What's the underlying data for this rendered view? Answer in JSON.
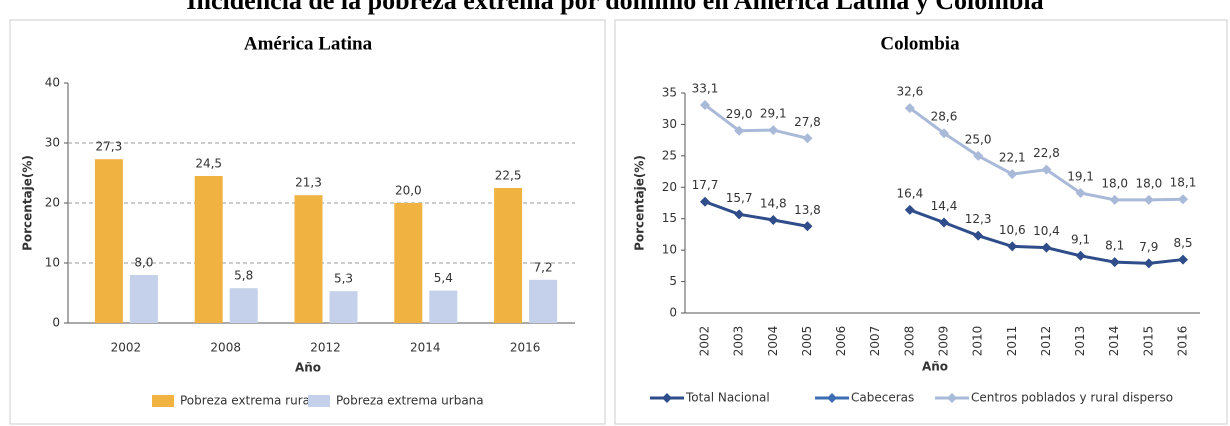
{
  "title": "Incidencia de la pobreza extrema por dominio en América Latina y Colombia",
  "chart_data": [
    {
      "type": "bar",
      "title": "América Latina",
      "x_label": "Año",
      "y_label": "Porcentaje(%)",
      "categories": [
        "2002",
        "2008",
        "2012",
        "2014",
        "2016"
      ],
      "series": [
        {
          "name": "Pobreza extrema rural",
          "color": "#f0b240",
          "values": [
            27.3,
            24.5,
            21.3,
            20.0,
            22.5
          ],
          "value_labels": [
            "27,3",
            "24,5",
            "21,3",
            "20,0",
            "22,5"
          ]
        },
        {
          "name": "Pobreza extrema urbana",
          "color": "#c5d0ea",
          "values": [
            8.0,
            5.8,
            5.3,
            5.4,
            7.2
          ],
          "value_labels": [
            "8,0",
            "5,8",
            "5,3",
            "5,4",
            "7,2"
          ]
        }
      ],
      "ylim": [
        0,
        40
      ],
      "yticks": [
        0,
        10,
        20,
        30,
        40
      ],
      "grid": true
    },
    {
      "type": "line",
      "title": "Colombia",
      "x_label": "Año",
      "y_label": "Porcentaje(%)",
      "categories": [
        "2002",
        "2003",
        "2004",
        "2005",
        "2006",
        "2007",
        "2008",
        "2009",
        "2010",
        "2011",
        "2012",
        "2013",
        "2014",
        "2015",
        "2016"
      ],
      "series": [
        {
          "name": "Total Nacional",
          "color": "#2e4d8a",
          "values": [
            17.7,
            15.7,
            14.8,
            13.8,
            null,
            null,
            16.4,
            14.4,
            12.3,
            10.6,
            10.4,
            9.1,
            8.1,
            7.9,
            8.5
          ],
          "value_labels": [
            "17,7",
            "15,7",
            "14,8",
            "13,8",
            null,
            null,
            "16,4",
            "14,4",
            "12,3",
            "10,6",
            "10,4",
            "9,1",
            "8,1",
            "7,9",
            "8,5"
          ]
        },
        {
          "name": "Cabeceras",
          "color": "#3d6db3",
          "values": [
            null,
            null,
            null,
            null,
            null,
            null,
            null,
            null,
            null,
            null,
            null,
            null,
            null,
            null,
            null
          ]
        },
        {
          "name": "Centros poblados y rural disperso",
          "color": "#a9b9d8",
          "values": [
            33.1,
            29.0,
            29.1,
            27.8,
            null,
            null,
            32.6,
            28.6,
            25.0,
            22.1,
            22.8,
            19.1,
            18.0,
            18.0,
            18.1
          ],
          "value_labels": [
            "33,1",
            "29,0",
            "29,1",
            "27,8",
            null,
            null,
            "32,6",
            "28,6",
            "25,0",
            "22,1",
            "22,8",
            "19,1",
            "18,0",
            "18,0",
            "18,1"
          ]
        }
      ],
      "ylim": [
        0,
        35
      ],
      "yticks": [
        0,
        5,
        10,
        15,
        20,
        25,
        30,
        35
      ],
      "grid": false
    }
  ]
}
